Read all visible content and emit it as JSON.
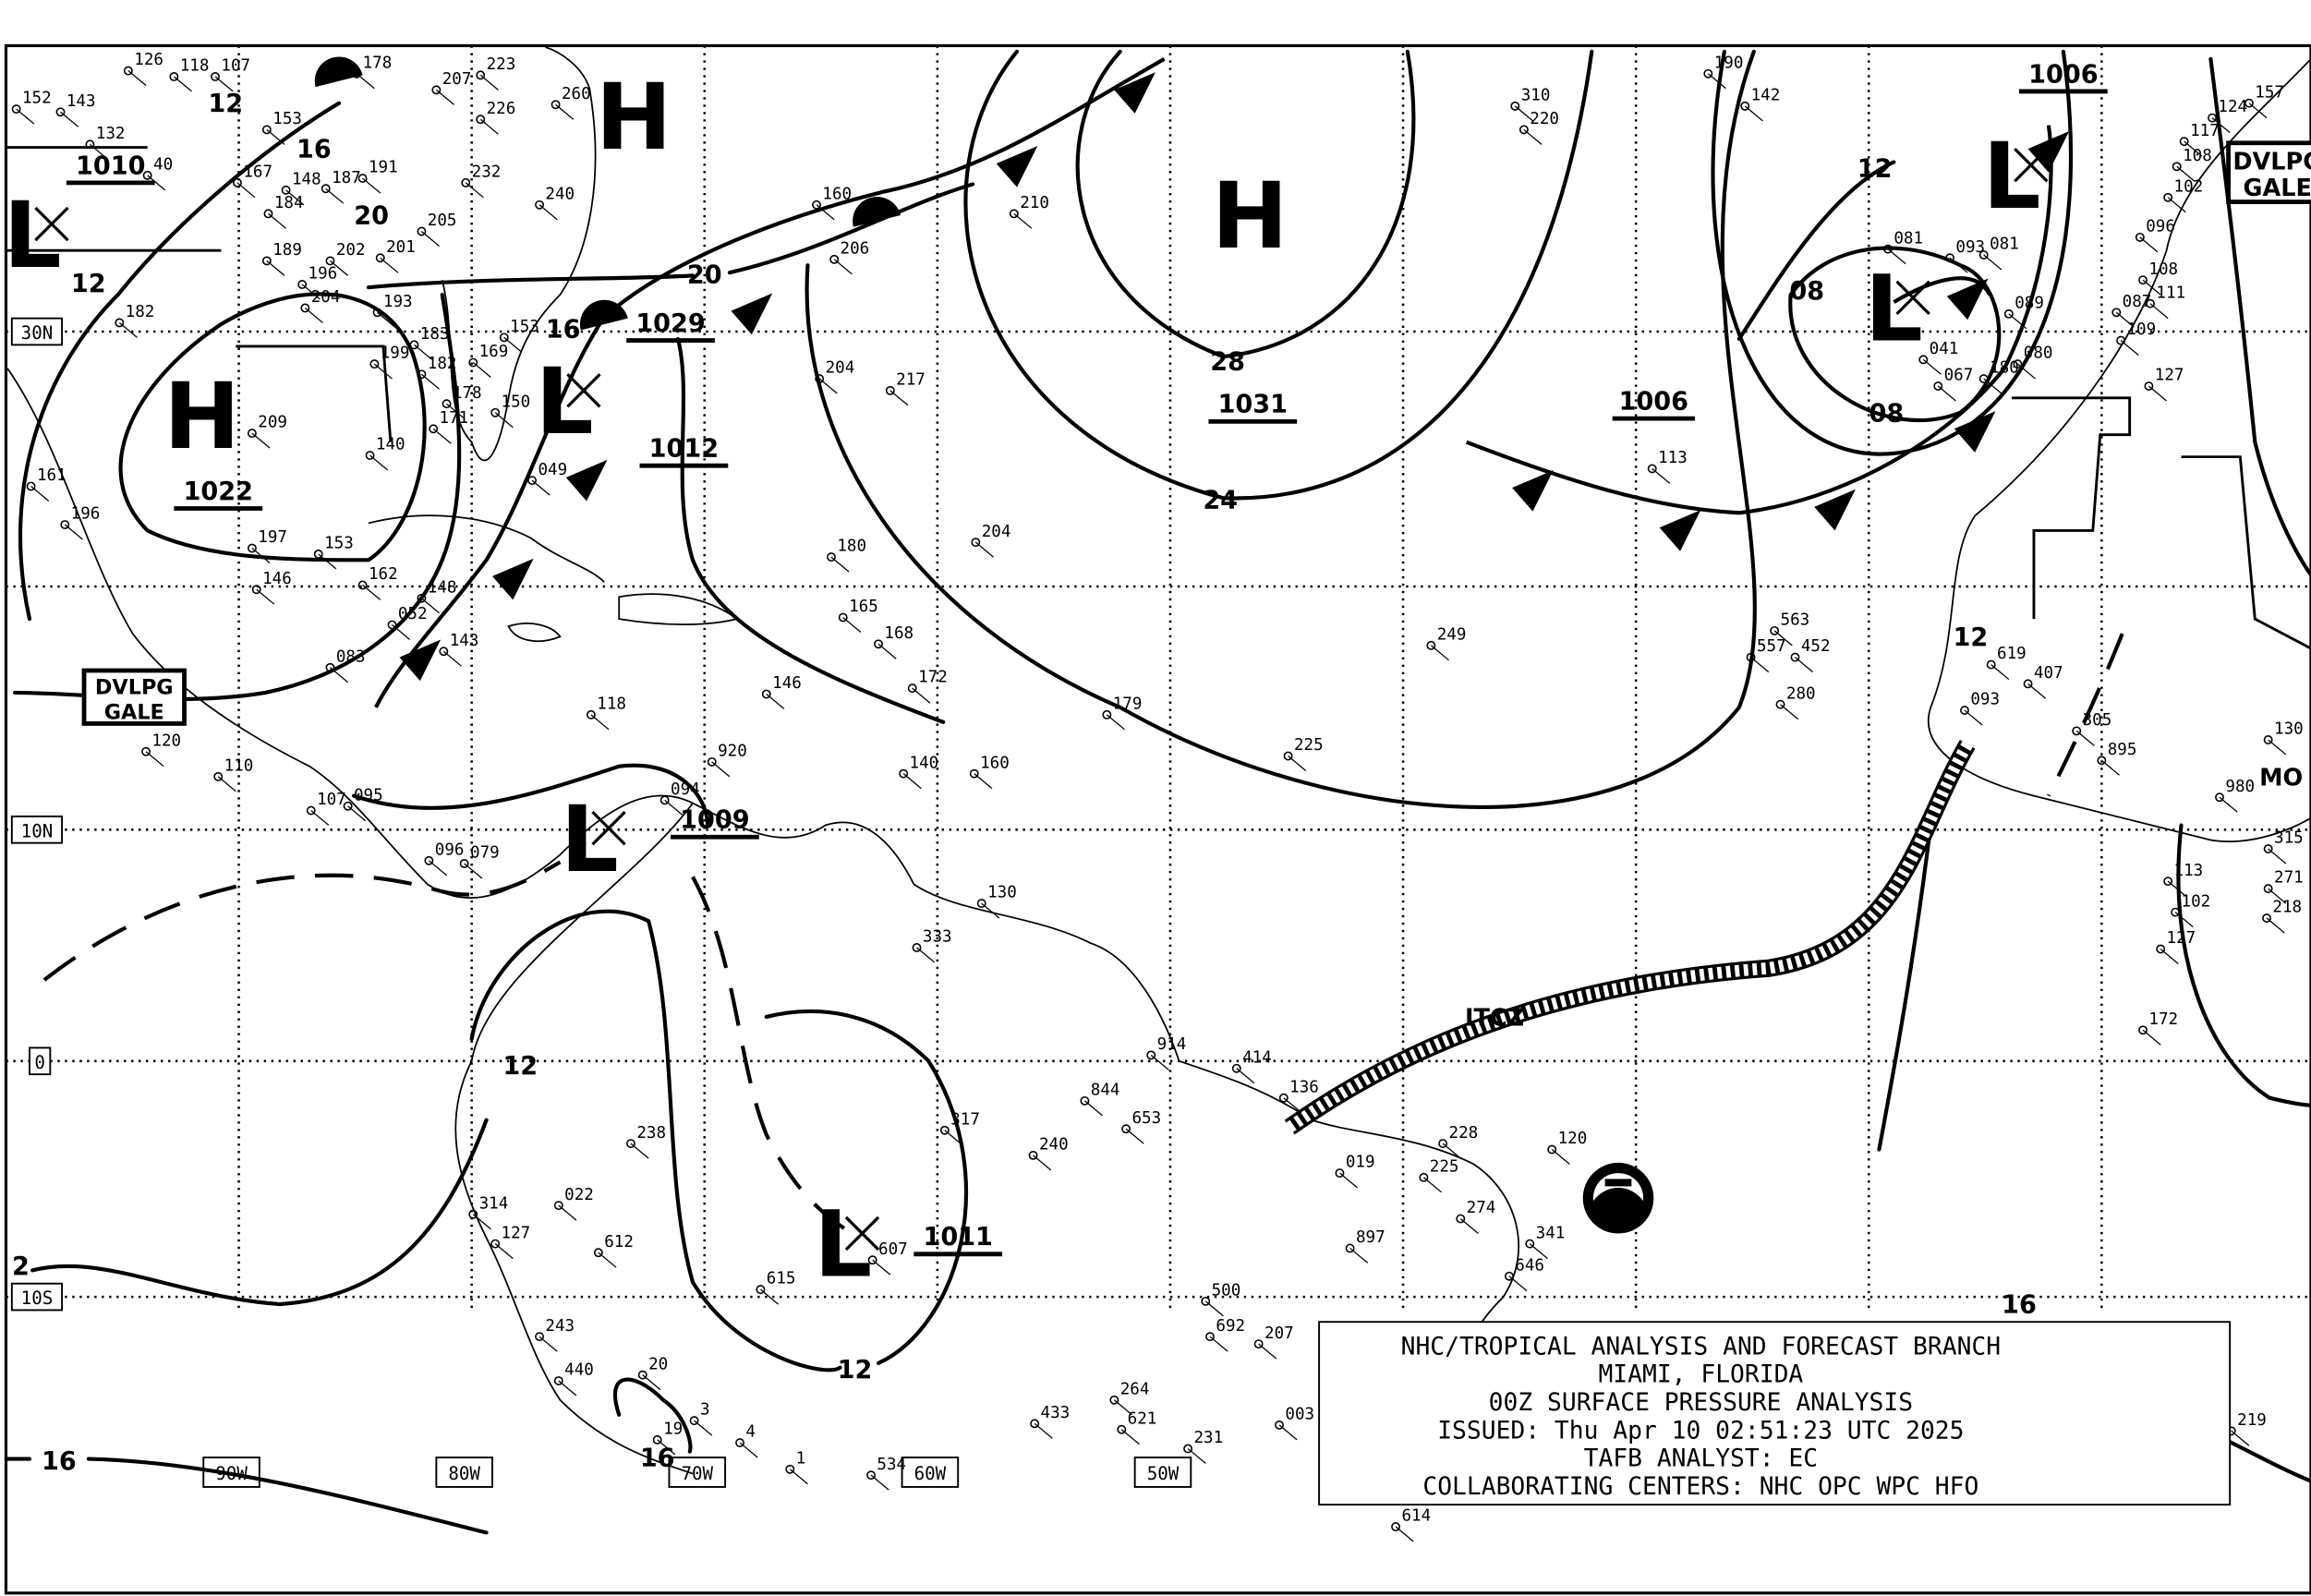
{
  "map": {
    "title_block": {
      "line1": "NHC/TROPICAL ANALYSIS AND FORECAST BRANCH",
      "line2": "MIAMI, FLORIDA",
      "line3": "00Z SURFACE PRESSURE ANALYSIS",
      "line4": "ISSUED: Thu Apr 10 02:51:23 UTC 2025",
      "line5": "TAFB ANALYST: EC",
      "line6": "COLLABORATING CENTERS: NHC OPC WPC HFO"
    },
    "latitude_labels": [
      "30N",
      "10N",
      "0",
      "10S"
    ],
    "longitude_labels": [
      "90W",
      "80W",
      "70W",
      "60W",
      "50W"
    ],
    "pressure_centers": [
      {
        "type": "H",
        "pressure": ""
      },
      {
        "type": "H",
        "pressure": "1022"
      },
      {
        "type": "H",
        "pressure": "1031"
      },
      {
        "type": "L",
        "pressure": "1010"
      },
      {
        "type": "L",
        "pressure": "1029"
      },
      {
        "type": "L",
        "pressure": "1012"
      },
      {
        "type": "L",
        "pressure": "1009"
      },
      {
        "type": "L",
        "pressure": "1011"
      },
      {
        "type": "L",
        "pressure": "1006"
      },
      {
        "type": "L",
        "pressure": ""
      }
    ],
    "front_pressure_label": "1006",
    "isobar_labels": [
      "12",
      "16",
      "20",
      "16",
      "20",
      "28",
      "24",
      "12",
      "08",
      "08",
      "12",
      "12",
      "12",
      "16",
      "16",
      "16",
      "2",
      "12"
    ],
    "annotations": {
      "gale_west": [
        "DVLPG",
        "GALE"
      ],
      "gale_east": [
        "DVLPG",
        "GALE"
      ],
      "itcz": "ITCZ",
      "mo": "MO"
    },
    "stations": [
      "126",
      "118",
      "107",
      "152",
      "143",
      "132",
      "40",
      "178",
      "207",
      "223",
      "226",
      "232",
      "240",
      "260",
      "153",
      "148",
      "167",
      "184",
      "187",
      "191",
      "205",
      "201",
      "202",
      "189",
      "196",
      "204",
      "193",
      "199",
      "183",
      "182",
      "178",
      "171",
      "169",
      "153",
      "150",
      "049",
      "209",
      "182",
      "161",
      "196",
      "197",
      "153",
      "162",
      "140",
      "148",
      "146",
      "143",
      "120",
      "118",
      "110",
      "107",
      "095",
      "096",
      "079",
      "052",
      "083",
      "210",
      "160",
      "206",
      "204",
      "217",
      "180",
      "204",
      "249",
      "179",
      "225",
      "146",
      "165",
      "168",
      "172",
      "140",
      "160",
      "094",
      "920",
      "130",
      "333",
      "238",
      "314",
      "127",
      "022",
      "612",
      "615",
      "607",
      "243",
      "440",
      "20",
      "19",
      "3",
      "4",
      "1",
      "534",
      "317",
      "240",
      "914",
      "414",
      "844",
      "653",
      "136",
      "228",
      "225",
      "274",
      "341",
      "646",
      "019",
      "897",
      "500",
      "692",
      "207",
      "264",
      "621",
      "231",
      "003",
      "614",
      "433",
      "120",
      "563",
      "557",
      "452",
      "280",
      "310",
      "220",
      "190",
      "142",
      "081",
      "081",
      "093",
      "089",
      "080",
      "041",
      "067",
      "180",
      "113",
      "124",
      "157",
      "117",
      "108",
      "102",
      "096",
      "108",
      "087",
      "111",
      "109",
      "127",
      "619",
      "093",
      "407",
      "305",
      "895",
      "980",
      "130",
      "113",
      "102",
      "127",
      "172",
      "219",
      "315",
      "271",
      "218"
    ],
    "colors": {
      "foreground": "#000000",
      "background": "#ffffff"
    },
    "logo": "NOAA"
  }
}
